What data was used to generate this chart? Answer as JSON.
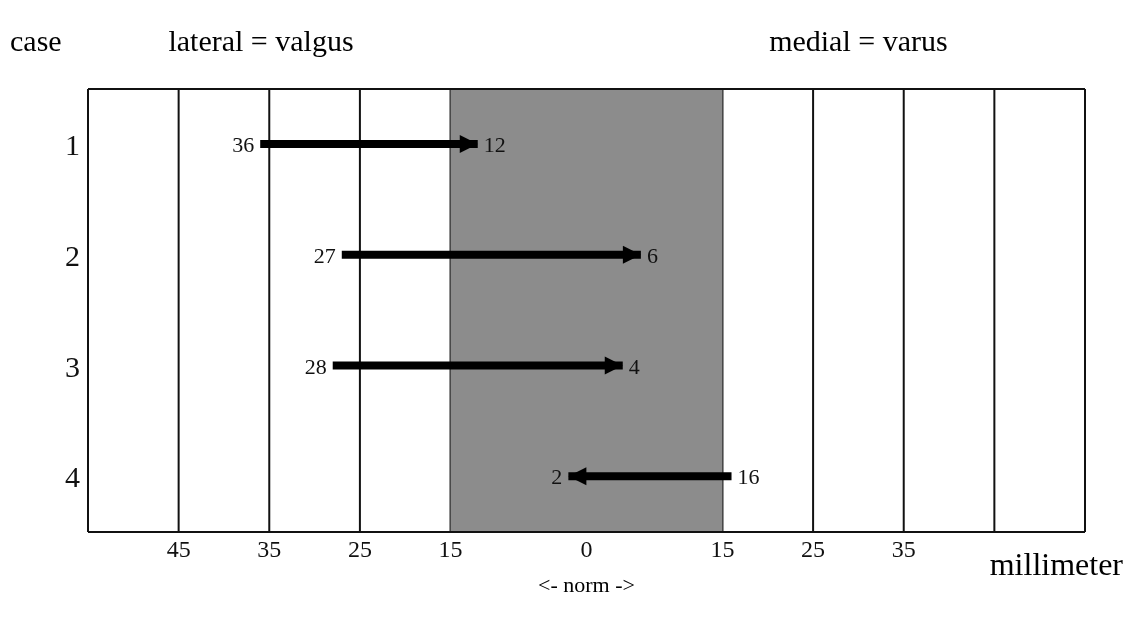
{
  "chart_data": {
    "type": "bar",
    "orientation": "horizontal",
    "ylabel": "case",
    "xlabel": "millimeter",
    "categories": [
      "1",
      "2",
      "3",
      "4"
    ],
    "base": [
      -36,
      -27,
      -28,
      16
    ],
    "values": [
      24,
      33,
      32,
      -18
    ],
    "color": "#000000",
    "xlim": [
      -55,
      55
    ],
    "xticks": [
      {
        "value": -45,
        "label": "45"
      },
      {
        "value": -35,
        "label": "35"
      },
      {
        "value": -25,
        "label": "25"
      },
      {
        "value": -15,
        "label": "15"
      },
      0,
      15,
      25,
      35,
      {
        "value": 45,
        "label": null
      }
    ],
    "grid": "x",
    "bands": [
      {
        "axis": "x",
        "from": -15,
        "to": 15,
        "label": "<- norm ->",
        "color": "#8c8c8c"
      }
    ],
    "annotations": [
      "lateral = valgus",
      "medial = varus",
      {
        "text": "36",
        "x": -36,
        "y": "1"
      },
      {
        "text": "12",
        "x": -12,
        "y": "1"
      },
      {
        "text": "27",
        "x": -27,
        "y": "2"
      },
      {
        "text": "6",
        "x": 6,
        "y": "2"
      },
      {
        "text": "28",
        "x": -28,
        "y": "3"
      },
      {
        "text": "4",
        "x": 4,
        "y": "3"
      },
      {
        "text": "16",
        "x": 16,
        "y": "4"
      },
      {
        "text": "2",
        "x": -2,
        "y": "4"
      }
    ]
  }
}
